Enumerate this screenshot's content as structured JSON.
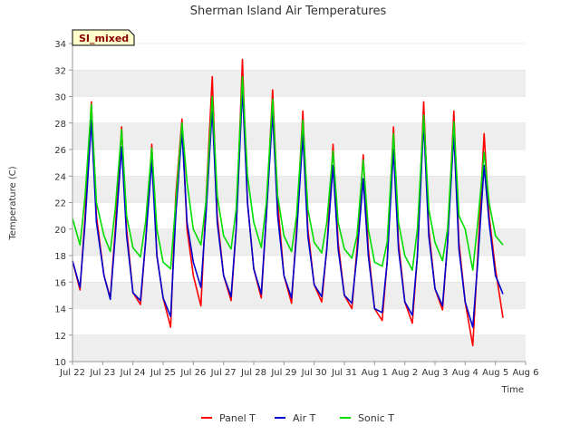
{
  "chart_data": {
    "type": "line",
    "title": "Sherman Island Air Temperatures",
    "xlabel": "Time",
    "ylabel": "Temperature (C)",
    "badge": "SI_mixed",
    "xlim": [
      "2025-07-22",
      "2025-08-06"
    ],
    "ylim": [
      10,
      34
    ],
    "y_ticks": [
      10,
      12,
      14,
      16,
      18,
      20,
      22,
      24,
      26,
      28,
      30,
      32,
      34
    ],
    "x_ticks": [
      {
        "x": "2025-07-22",
        "label": "Jul 22"
      },
      {
        "x": "2025-07-23",
        "label": "Jul 23"
      },
      {
        "x": "2025-07-24",
        "label": "Jul 24"
      },
      {
        "x": "2025-07-25",
        "label": "Jul 25"
      },
      {
        "x": "2025-07-26",
        "label": "Jul 26"
      },
      {
        "x": "2025-07-27",
        "label": "Jul 27"
      },
      {
        "x": "2025-07-28",
        "label": "Jul 28"
      },
      {
        "x": "2025-07-29",
        "label": "Jul 29"
      },
      {
        "x": "2025-07-30",
        "label": "Jul 30"
      },
      {
        "x": "2025-07-31",
        "label": "Jul 31"
      },
      {
        "x": "2025-08-01",
        "label": "Aug 1"
      },
      {
        "x": "2025-08-02",
        "label": "Aug 2"
      },
      {
        "x": "2025-08-03",
        "label": "Aug 3"
      },
      {
        "x": "2025-08-04",
        "label": "Aug 4"
      },
      {
        "x": "2025-08-05",
        "label": "Aug 5"
      },
      {
        "x": "2025-08-06",
        "label": "Aug 6"
      }
    ],
    "grid": true,
    "legend_position": "bottom",
    "series": [
      {
        "name": "Panel T",
        "color": "#ff0000",
        "x": [
          "2025-07-22 00:00",
          "2025-07-22 06:00",
          "2025-07-22 10:00",
          "2025-07-22 15:00",
          "2025-07-22 19:00",
          "2025-07-23 01:00",
          "2025-07-23 06:00",
          "2025-07-23 10:00",
          "2025-07-23 15:00",
          "2025-07-23 19:00",
          "2025-07-24 00:00",
          "2025-07-24 06:00",
          "2025-07-24 10:00",
          "2025-07-24 15:00",
          "2025-07-24 19:00",
          "2025-07-25 00:00",
          "2025-07-25 06:00",
          "2025-07-25 10:00",
          "2025-07-25 15:00",
          "2025-07-25 19:00",
          "2025-07-26 00:00",
          "2025-07-26 06:00",
          "2025-07-26 10:00",
          "2025-07-26 15:00",
          "2025-07-26 19:00",
          "2025-07-27 00:00",
          "2025-07-27 06:00",
          "2025-07-27 10:00",
          "2025-07-27 15:00",
          "2025-07-27 19:00",
          "2025-07-28 00:00",
          "2025-07-28 06:00",
          "2025-07-28 10:00",
          "2025-07-28 15:00",
          "2025-07-28 19:00",
          "2025-07-29 00:00",
          "2025-07-29 06:00",
          "2025-07-29 10:00",
          "2025-07-29 15:00",
          "2025-07-29 19:00",
          "2025-07-30 00:00",
          "2025-07-30 06:00",
          "2025-07-30 10:00",
          "2025-07-30 15:00",
          "2025-07-30 19:00",
          "2025-07-31 00:00",
          "2025-07-31 06:00",
          "2025-07-31 10:00",
          "2025-07-31 15:00",
          "2025-07-31 19:00",
          "2025-08-01 00:00",
          "2025-08-01 06:00",
          "2025-08-01 10:00",
          "2025-08-01 15:00",
          "2025-08-01 19:00",
          "2025-08-02 00:00",
          "2025-08-02 06:00",
          "2025-08-02 10:00",
          "2025-08-02 15:00",
          "2025-08-02 19:00",
          "2025-08-03 00:00",
          "2025-08-03 06:00",
          "2025-08-03 10:00",
          "2025-08-03 15:00",
          "2025-08-03 19:00",
          "2025-08-04 00:00",
          "2025-08-04 06:00",
          "2025-08-04 10:00",
          "2025-08-04 15:00",
          "2025-08-04 19:00",
          "2025-08-05 00:00",
          "2025-08-05 06:00"
        ],
        "y": [
          17.6,
          15.4,
          21.0,
          29.6,
          21.0,
          16.5,
          14.8,
          20.0,
          27.7,
          20.0,
          15.2,
          14.3,
          19.0,
          26.4,
          18.0,
          14.8,
          12.6,
          22.5,
          28.3,
          20.0,
          16.5,
          14.2,
          22.0,
          31.5,
          21.0,
          16.5,
          14.6,
          20.0,
          32.8,
          22.0,
          17.0,
          14.8,
          21.0,
          30.5,
          22.0,
          16.5,
          14.4,
          20.0,
          28.9,
          20.0,
          15.8,
          14.5,
          18.5,
          26.4,
          19.0,
          15.0,
          14.0,
          18.5,
          25.6,
          18.5,
          14.0,
          13.1,
          17.5,
          27.7,
          19.0,
          14.5,
          12.9,
          18.0,
          29.6,
          20.0,
          15.5,
          13.9,
          19.0,
          28.9,
          19.0,
          14.5,
          11.2,
          18.0,
          27.2,
          21.0,
          17.0,
          13.3
        ]
      },
      {
        "name": "Air T",
        "color": "#0000cc",
        "x": [
          "2025-07-22 00:00",
          "2025-07-22 06:00",
          "2025-07-22 10:00",
          "2025-07-22 15:00",
          "2025-07-22 19:00",
          "2025-07-23 01:00",
          "2025-07-23 06:00",
          "2025-07-23 10:00",
          "2025-07-23 15:00",
          "2025-07-23 19:00",
          "2025-07-24 00:00",
          "2025-07-24 06:00",
          "2025-07-24 10:00",
          "2025-07-24 15:00",
          "2025-07-24 19:00",
          "2025-07-25 00:00",
          "2025-07-25 06:00",
          "2025-07-25 10:00",
          "2025-07-25 15:00",
          "2025-07-25 19:00",
          "2025-07-26 00:00",
          "2025-07-26 06:00",
          "2025-07-26 10:00",
          "2025-07-26 15:00",
          "2025-07-26 19:00",
          "2025-07-27 00:00",
          "2025-07-27 06:00",
          "2025-07-27 10:00",
          "2025-07-27 15:00",
          "2025-07-27 19:00",
          "2025-07-28 00:00",
          "2025-07-28 06:00",
          "2025-07-28 10:00",
          "2025-07-28 15:00",
          "2025-07-28 19:00",
          "2025-07-29 00:00",
          "2025-07-29 06:00",
          "2025-07-29 10:00",
          "2025-07-29 15:00",
          "2025-07-29 19:00",
          "2025-07-30 00:00",
          "2025-07-30 06:00",
          "2025-07-30 10:00",
          "2025-07-30 15:00",
          "2025-07-30 19:00",
          "2025-07-31 00:00",
          "2025-07-31 06:00",
          "2025-07-31 10:00",
          "2025-07-31 15:00",
          "2025-07-31 19:00",
          "2025-08-01 00:00",
          "2025-08-01 06:00",
          "2025-08-01 10:00",
          "2025-08-01 15:00",
          "2025-08-01 19:00",
          "2025-08-02 00:00",
          "2025-08-02 06:00",
          "2025-08-02 10:00",
          "2025-08-02 15:00",
          "2025-08-02 19:00",
          "2025-08-03 00:00",
          "2025-08-03 06:00",
          "2025-08-03 10:00",
          "2025-08-03 15:00",
          "2025-08-03 19:00",
          "2025-08-04 00:00",
          "2025-08-04 06:00",
          "2025-08-04 10:00",
          "2025-08-04 15:00",
          "2025-08-04 19:00",
          "2025-08-05 00:00",
          "2025-08-05 06:00"
        ],
        "y": [
          17.6,
          15.6,
          20.5,
          28.2,
          20.5,
          16.5,
          14.7,
          19.5,
          26.2,
          19.5,
          15.2,
          14.6,
          19.0,
          25.2,
          18.0,
          14.8,
          13.4,
          21.0,
          27.4,
          20.5,
          17.5,
          15.6,
          21.0,
          29.1,
          20.5,
          16.5,
          14.9,
          20.0,
          30.6,
          22.0,
          17.0,
          15.1,
          21.0,
          28.8,
          21.0,
          16.5,
          14.8,
          19.5,
          27.1,
          19.5,
          15.8,
          14.9,
          18.5,
          24.8,
          18.5,
          15.0,
          14.4,
          18.0,
          23.8,
          18.0,
          14.0,
          13.7,
          17.5,
          26.0,
          18.5,
          14.5,
          13.5,
          18.0,
          28.1,
          19.5,
          15.5,
          14.2,
          19.0,
          27.2,
          18.5,
          14.5,
          12.6,
          17.5,
          24.8,
          20.5,
          16.5,
          15.1
        ]
      },
      {
        "name": "Sonic T",
        "color": "#00dd00",
        "x": [
          "2025-07-22 00:00",
          "2025-07-22 06:00",
          "2025-07-22 10:00",
          "2025-07-22 15:00",
          "2025-07-22 19:00",
          "2025-07-23 01:00",
          "2025-07-23 06:00",
          "2025-07-23 10:00",
          "2025-07-23 15:00",
          "2025-07-23 19:00",
          "2025-07-24 00:00",
          "2025-07-24 06:00",
          "2025-07-24 10:00",
          "2025-07-24 15:00",
          "2025-07-24 19:00",
          "2025-07-25 00:00",
          "2025-07-25 06:00",
          "2025-07-25 10:00",
          "2025-07-25 15:00",
          "2025-07-25 19:00",
          "2025-07-26 00:00",
          "2025-07-26 06:00",
          "2025-07-26 10:00",
          "2025-07-26 15:00",
          "2025-07-26 19:00",
          "2025-07-27 00:00",
          "2025-07-27 06:00",
          "2025-07-27 10:00",
          "2025-07-27 15:00",
          "2025-07-27 19:00",
          "2025-07-28 00:00",
          "2025-07-28 06:00",
          "2025-07-28 10:00",
          "2025-07-28 15:00",
          "2025-07-28 19:00",
          "2025-07-29 00:00",
          "2025-07-29 06:00",
          "2025-07-29 10:00",
          "2025-07-29 15:00",
          "2025-07-29 19:00",
          "2025-07-30 00:00",
          "2025-07-30 06:00",
          "2025-07-30 10:00",
          "2025-07-30 15:00",
          "2025-07-30 19:00",
          "2025-07-31 00:00",
          "2025-07-31 06:00",
          "2025-07-31 10:00",
          "2025-07-31 15:00",
          "2025-07-31 19:00",
          "2025-08-01 00:00",
          "2025-08-01 06:00",
          "2025-08-01 10:00",
          "2025-08-01 15:00",
          "2025-08-01 19:00",
          "2025-08-02 00:00",
          "2025-08-02 06:00",
          "2025-08-02 10:00",
          "2025-08-02 15:00",
          "2025-08-02 19:00",
          "2025-08-03 00:00",
          "2025-08-03 06:00",
          "2025-08-03 10:00",
          "2025-08-03 15:00",
          "2025-08-03 19:00",
          "2025-08-04 00:00",
          "2025-08-04 06:00",
          "2025-08-04 10:00",
          "2025-08-04 15:00",
          "2025-08-04 19:00",
          "2025-08-05 00:00",
          "2025-08-05 06:00"
        ],
        "y": [
          20.8,
          18.8,
          22.5,
          29.4,
          22.0,
          19.5,
          18.3,
          21.5,
          27.5,
          21.0,
          18.6,
          17.9,
          20.5,
          26.1,
          20.0,
          17.5,
          17.0,
          22.0,
          28.0,
          23.5,
          20.0,
          18.8,
          22.0,
          30.0,
          22.5,
          19.5,
          18.5,
          21.5,
          31.5,
          24.0,
          20.5,
          18.6,
          22.0,
          29.8,
          22.5,
          19.5,
          18.3,
          21.0,
          28.2,
          21.5,
          19.0,
          18.2,
          20.5,
          25.9,
          20.5,
          18.5,
          17.8,
          19.5,
          25.2,
          20.0,
          17.5,
          17.2,
          19.0,
          27.2,
          20.5,
          18.0,
          16.9,
          20.0,
          28.6,
          21.5,
          19.0,
          17.6,
          20.0,
          28.1,
          21.0,
          20.0,
          16.9,
          20.5,
          25.8,
          22.0,
          19.5,
          18.8
        ]
      }
    ]
  }
}
